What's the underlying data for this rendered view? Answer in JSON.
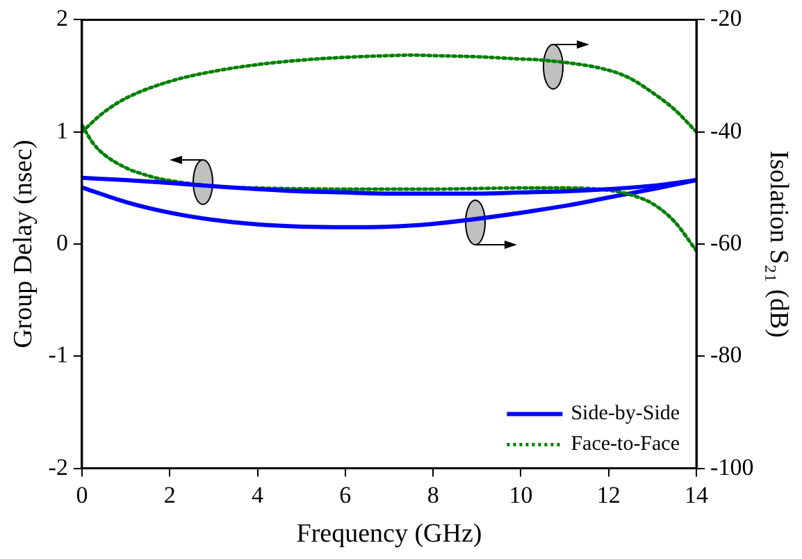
{
  "chart_data": {
    "type": "line",
    "xlabel": "Frequency (GHz)",
    "ylabel": "Group Delay (nsec)",
    "y2label": "Isolation S₂₁ (dB)",
    "xlim": [
      0,
      14
    ],
    "xticks": [
      0,
      2,
      4,
      6,
      8,
      10,
      12,
      14
    ],
    "ylim": [
      -2,
      2
    ],
    "yticks": [
      -2,
      -1,
      0,
      1,
      2
    ],
    "y2lim": [
      -100,
      -20
    ],
    "y2ticks": [
      -100,
      -80,
      -60,
      -40,
      -20
    ],
    "grid": false,
    "legend": "bottom right",
    "marker": "none",
    "series": [
      {
        "name": "Side-by-Side",
        "color": "#0000ff",
        "line_style": "solid",
        "x": [
          0,
          1,
          1.8,
          3.2,
          4,
          5,
          6,
          7,
          8,
          9,
          10,
          11,
          12,
          13,
          14
        ],
        "values": [
          0.59,
          0.57,
          0.55,
          0.51,
          0.49,
          0.47,
          0.46,
          0.45,
          0.45,
          0.45,
          0.46,
          0.47,
          0.49,
          0.52,
          0.57
        ]
      },
      {
        "name": "Face-to-Face",
        "color": "#008000",
        "line_style": "dotted",
        "x": [
          0,
          0.25,
          0.5,
          1,
          1.5,
          1.8,
          3.2,
          4,
          6,
          8,
          10,
          11,
          12,
          12.5,
          13,
          13.5,
          14
        ],
        "values": [
          1.06,
          0.9,
          0.8,
          0.68,
          0.61,
          0.58,
          0.51,
          0.5,
          0.49,
          0.49,
          0.5,
          0.5,
          0.48,
          0.44,
          0.36,
          0.2,
          -0.06
        ]
      },
      {
        "color": "#0000ff",
        "line_style": "solid",
        "axis": "y2",
        "x": [
          0,
          1,
          2,
          3,
          4,
          5,
          6,
          7,
          8,
          11,
          12,
          13,
          14
        ],
        "values": [
          -49.9,
          -52.5,
          -54.4,
          -55.7,
          -56.5,
          -56.9,
          -57,
          -56.9,
          -56.4,
          -53.2,
          -51.7,
          -50.2,
          -48.6
        ]
      },
      {
        "color": "#008000",
        "line_style": "dotted",
        "axis": "y2",
        "x": [
          0,
          0.5,
          1,
          2,
          3,
          4,
          5,
          6,
          7,
          7.5,
          8,
          9,
          10,
          10.5,
          12,
          12.5,
          13,
          13.5,
          14
        ],
        "values": [
          -40,
          -36.5,
          -34,
          -31,
          -29.2,
          -28,
          -27.2,
          -26.7,
          -26.4,
          -26.3,
          -26.4,
          -26.6,
          -27,
          -27.2,
          -29,
          -30.5,
          -33,
          -36,
          -40
        ]
      }
    ]
  }
}
